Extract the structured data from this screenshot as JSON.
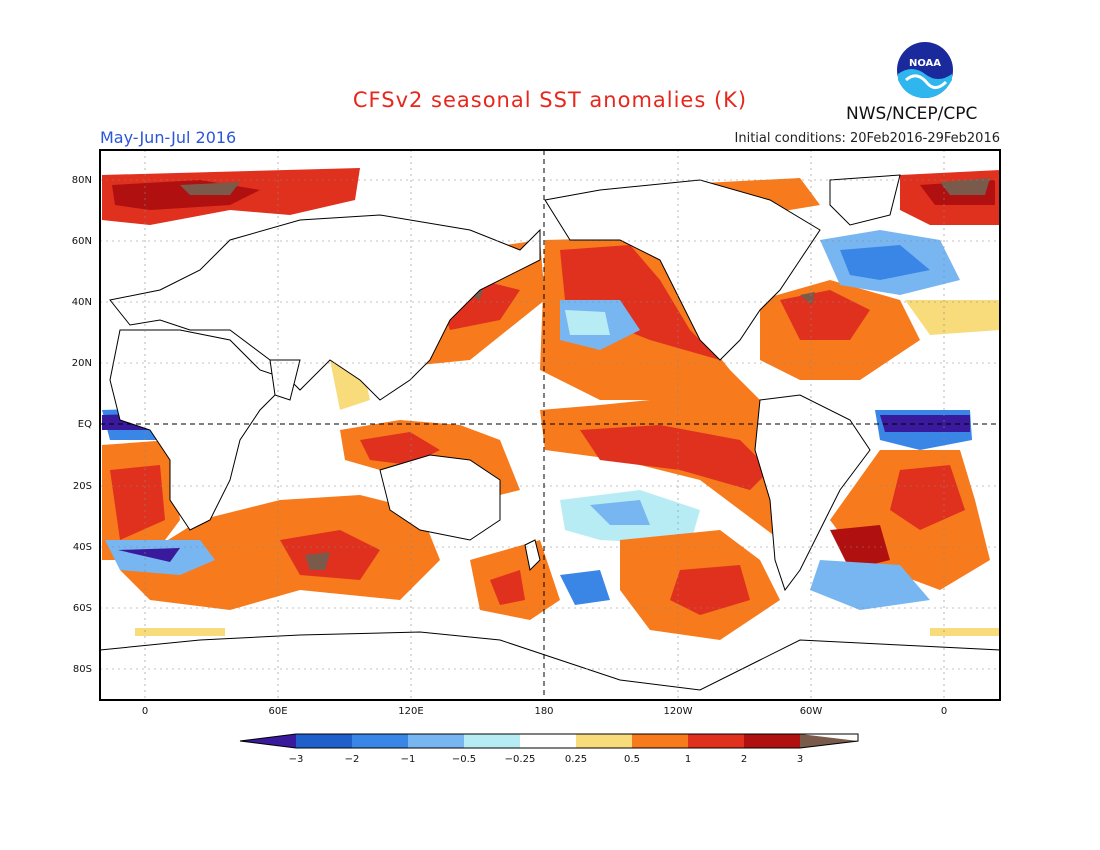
{
  "title": "CFSv2 seasonal SST anomalies (K)",
  "organization": "NWS/NCEP/CPC",
  "logo_text": "NOAA",
  "season": "May-Jun-Jul 2016",
  "initial_conditions": "Initial conditions: 20Feb2016-29Feb2016",
  "lat_labels": [
    "80N",
    "60N",
    "40N",
    "20N",
    "EQ",
    "20S",
    "40S",
    "60S",
    "80S"
  ],
  "lon_labels": [
    "0",
    "60E",
    "120E",
    "180",
    "120W",
    "60W",
    "0"
  ],
  "colorbar": {
    "labels": [
      "−3",
      "−2",
      "−1",
      "−0.5",
      "−0.25",
      "0.25",
      "0.5",
      "1",
      "2",
      "3"
    ],
    "colors": [
      "#3a1a9c",
      "#1f5fcc",
      "#3a86e6",
      "#78b6f2",
      "#b8ecf4",
      "#ffffff",
      "#f8dc7c",
      "#f77a1c",
      "#e0301e",
      "#b01010",
      "#7a5a4a"
    ]
  },
  "colors": {
    "title": "#e8261c",
    "season": "#2a56d8",
    "land": "#ffffff",
    "coast": "#000000"
  }
}
